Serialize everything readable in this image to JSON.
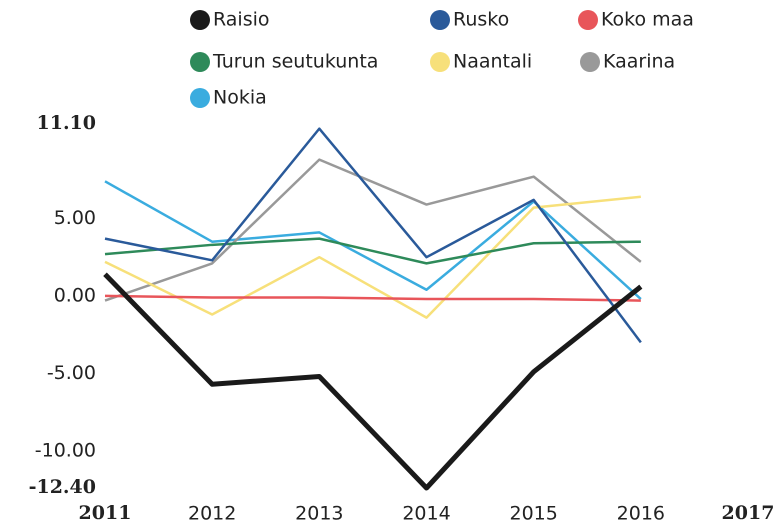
{
  "chart_data": {
    "type": "line",
    "x": [
      2011,
      2012,
      2013,
      2014,
      2015,
      2016
    ],
    "series": [
      {
        "name": "Raisio",
        "color": "#1a1a1a",
        "values": [
          1.4,
          -5.7,
          -5.2,
          -12.4,
          -4.9,
          0.6
        ]
      },
      {
        "name": "Rusko",
        "color": "#2a5a9a",
        "values": [
          3.7,
          2.3,
          10.8,
          2.5,
          6.2,
          -3.0
        ]
      },
      {
        "name": "Koko maa",
        "color": "#e8555a",
        "values": [
          0,
          -0.1,
          -0.1,
          -0.2,
          -0.2,
          -0.3
        ]
      },
      {
        "name": "Turun seutukunta",
        "color": "#2e8a5a",
        "values": [
          2.7,
          3.3,
          3.7,
          2.1,
          3.4,
          3.5
        ]
      },
      {
        "name": "Naantali",
        "color": "#f7e07a",
        "values": [
          2.2,
          -1.2,
          2.5,
          -1.4,
          5.7,
          6.4
        ]
      },
      {
        "name": "Kaarina",
        "color": "#999999",
        "values": [
          -0.3,
          2.1,
          8.8,
          5.9,
          7.7,
          2.2
        ]
      },
      {
        "name": "Nokia",
        "color": "#3aacdf",
        "values": [
          7.4,
          3.5,
          4.1,
          0.4,
          6.1,
          -0.2
        ]
      }
    ],
    "xlim": [
      2011,
      2017
    ],
    "xticks": [
      2011,
      2012,
      2013,
      2014,
      2015,
      2016,
      2017
    ],
    "ylim": [
      -12.4,
      11.1
    ],
    "yticks": [
      {
        "value": -12.4,
        "label": "-12.40"
      },
      {
        "value": -10,
        "label": "-10.00"
      },
      {
        "value": -5,
        "label": "-5.00"
      },
      {
        "value": 0,
        "label": "0.00"
      },
      {
        "value": 5,
        "label": "5.00"
      },
      {
        "value": 11.1,
        "label": "11.10"
      }
    ],
    "grid": false
  }
}
